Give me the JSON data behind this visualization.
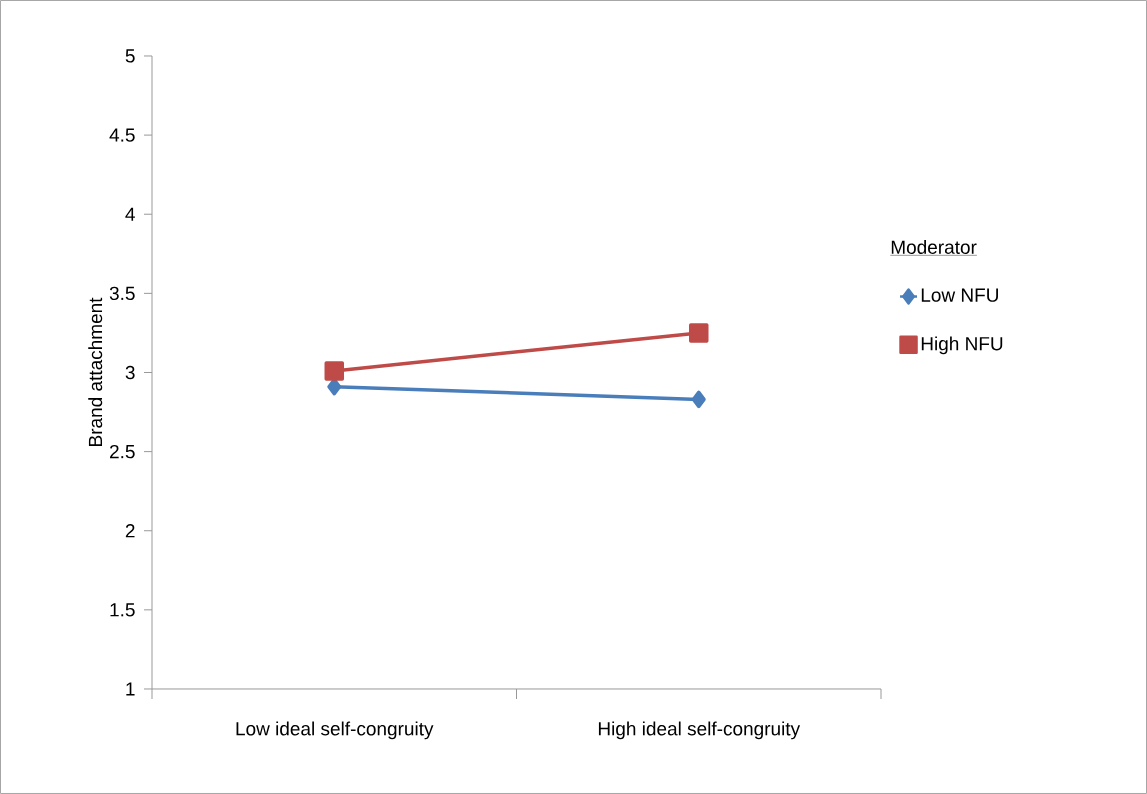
{
  "chart_data": {
    "type": "line",
    "ylabel": "Brand attachment",
    "legend_title": "Moderator",
    "categories": [
      "Low ideal self-congruity",
      "High ideal self-congruity"
    ],
    "series": [
      {
        "name": "Low NFU",
        "color": "#4a7ebb",
        "marker": "diamond",
        "values": [
          2.91,
          2.83
        ]
      },
      {
        "name": "High NFU",
        "color": "#be4b48",
        "marker": "square",
        "values": [
          3.01,
          3.25
        ]
      }
    ],
    "ylim": [
      1,
      5
    ],
    "yticks": [
      1,
      1.5,
      2,
      2.5,
      3,
      3.5,
      4,
      4.5,
      5
    ],
    "grid": false,
    "legend": "right"
  }
}
